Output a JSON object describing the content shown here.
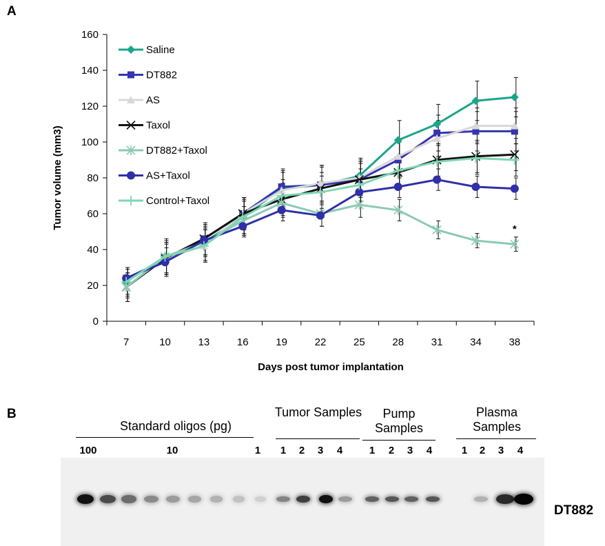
{
  "panel_a_letter": "A",
  "panel_b_letter": "B",
  "chart_data": {
    "type": "line",
    "xlabel": "Days post tumor implantation",
    "ylabel": "Tumor volume (mm3)",
    "categories": [
      "7",
      "10",
      "13",
      "16",
      "19",
      "22",
      "25",
      "28",
      "31",
      "34",
      "38"
    ],
    "ylim": [
      0,
      160
    ],
    "yticks": [
      0,
      20,
      40,
      60,
      80,
      100,
      120,
      140,
      160
    ],
    "legend_position": "top-left",
    "grid": false,
    "series": [
      {
        "name": "Saline",
        "color": "#1aa58a",
        "marker": "diamond",
        "values": [
          22,
          36,
          44,
          58,
          74,
          76,
          81,
          101,
          110,
          123,
          125
        ],
        "errors": [
          8,
          10,
          10,
          10,
          10,
          11,
          10,
          11,
          11,
          11,
          11
        ]
      },
      {
        "name": "DT882",
        "color": "#3535b0",
        "marker": "square",
        "values": [
          24,
          34,
          46,
          60,
          75,
          76,
          79,
          90,
          105,
          106,
          106
        ],
        "errors": [
          6,
          9,
          9,
          9,
          10,
          10,
          10,
          10,
          10,
          11,
          11
        ]
      },
      {
        "name": "AS",
        "color": "#d8d8d8",
        "marker": "triangle",
        "values": [
          19,
          35,
          42,
          60,
          73,
          77,
          80,
          92,
          102,
          109,
          109
        ],
        "errors": [
          6,
          9,
          9,
          9,
          10,
          10,
          10,
          10,
          10,
          10,
          10
        ]
      },
      {
        "name": "Taxol",
        "color": "#111111",
        "marker": "x",
        "values": [
          19,
          35,
          46,
          60,
          68,
          74,
          79,
          83,
          90,
          92,
          93
        ],
        "errors": [
          8,
          9,
          9,
          9,
          9,
          9,
          9,
          9,
          9,
          9,
          9
        ]
      },
      {
        "name": "DT882+Taxol",
        "color": "#8cc9b5",
        "marker": "star",
        "values": [
          19,
          36,
          44,
          56,
          66,
          60,
          65,
          62,
          51,
          45,
          43
        ],
        "errors": [
          8,
          9,
          8,
          8,
          8,
          7,
          7,
          6,
          5,
          4,
          4
        ]
      },
      {
        "name": "AS+Taxol",
        "color": "#2f2fa8",
        "marker": "circle",
        "values": [
          24,
          33,
          45,
          53,
          62,
          59,
          72,
          75,
          79,
          75,
          74
        ],
        "errors": [
          6,
          8,
          8,
          6,
          6,
          6,
          7,
          6,
          6,
          6,
          6
        ]
      },
      {
        "name": "Control+Taxol",
        "color": "#7fd6b4",
        "marker": "plus",
        "values": [
          22,
          36,
          42,
          58,
          70,
          72,
          76,
          84,
          89,
          91,
          90
        ],
        "errors": [
          7,
          9,
          9,
          9,
          9,
          9,
          9,
          9,
          9,
          9,
          9
        ]
      }
    ],
    "annotations": [
      {
        "text": "*",
        "category": "38",
        "y": 52
      }
    ]
  },
  "panel_b": {
    "group_titles": {
      "standard": "Standard oligos (pg)",
      "tumor": "Tumor Samples",
      "pump": "Pump Samples",
      "plasma": "Plasma Samples"
    },
    "standard_lane_labels": {
      "first": "100",
      "middle": "10",
      "last": "1"
    },
    "sample_lane_numbers": [
      "1",
      "2",
      "3",
      "4"
    ],
    "band_label": "DT882",
    "band_intensities": {
      "standard": [
        0.95,
        0.7,
        0.55,
        0.42,
        0.35,
        0.3,
        0.25,
        0.18,
        0.12
      ],
      "tumor": [
        0.45,
        0.75,
        0.95,
        0.35
      ],
      "pump": [
        0.6,
        0.65,
        0.6,
        0.65
      ],
      "plasma": [
        0.0,
        0.25,
        0.85,
        1.0
      ]
    }
  }
}
